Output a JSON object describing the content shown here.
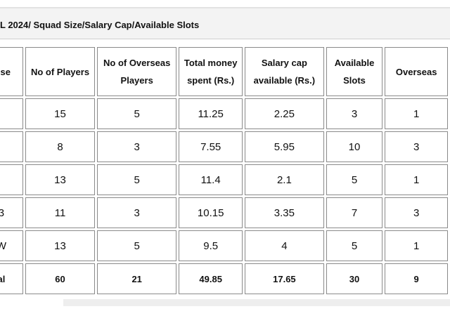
{
  "caption": "L 2024/ Squad Size/Salary Cap/Available Slots",
  "table": {
    "headers": [
      "nise",
      "No of Players",
      "No of Overseas Players",
      "Total  money spent (Rs.)",
      "Salary cap available (Rs.)",
      "Available Slots",
      "Overseas"
    ],
    "rows": [
      [
        "",
        "15",
        "5",
        "11.25",
        "2.25",
        "3",
        "1"
      ],
      [
        "",
        "8",
        "3",
        "7.55",
        "5.95",
        "10",
        "3"
      ],
      [
        "",
        "13",
        "5",
        "11.4",
        "2.1",
        "5",
        "1"
      ],
      [
        "3",
        "11",
        "3",
        "10.15",
        "3.35",
        "7",
        "3"
      ],
      [
        "W",
        "13",
        "5",
        "9.5",
        "4",
        "5",
        "1"
      ]
    ],
    "total": [
      "al",
      "60",
      "21",
      "49.85",
      "17.65",
      "30",
      "9"
    ]
  }
}
